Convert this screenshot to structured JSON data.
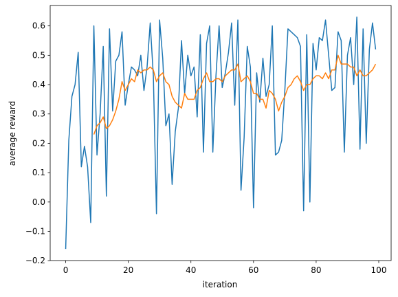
{
  "chart_data": {
    "type": "line",
    "x_label": "iteration",
    "y_label": "average reward",
    "xlim": [
      -4.95,
      103.95
    ],
    "ylim": [
      -0.1995,
      0.6695
    ],
    "xticks": [
      0,
      20,
      40,
      60,
      80,
      100
    ],
    "yticks": [
      {
        "value": -0.2,
        "label": "−0.2"
      },
      {
        "value": -0.1,
        "label": "−0.1"
      },
      {
        "value": 0.0,
        "label": "0.0"
      },
      0.1,
      0.2,
      0.3,
      0.4,
      0.5,
      0.6
    ],
    "series": [
      {
        "color": "#1f77b4",
        "x": [
          0,
          1,
          2,
          3,
          4,
          5,
          6,
          7,
          8,
          9,
          10,
          11,
          12,
          13,
          14,
          15,
          16,
          17,
          18,
          19,
          20,
          21,
          22,
          23,
          24,
          25,
          26,
          27,
          28,
          29,
          30,
          31,
          32,
          33,
          34,
          35,
          36,
          37,
          38,
          39,
          40,
          41,
          42,
          43,
          44,
          45,
          46,
          47,
          48,
          49,
          50,
          51,
          52,
          53,
          54,
          55,
          56,
          57,
          58,
          59,
          60,
          61,
          62,
          63,
          64,
          65,
          66,
          67,
          68,
          69,
          70,
          71,
          72,
          73,
          74,
          75,
          76,
          77,
          78,
          79,
          80,
          81,
          82,
          83,
          84,
          85,
          86,
          87,
          88,
          89,
          90,
          91,
          92,
          93,
          94,
          95,
          96,
          97,
          98,
          99
        ],
        "values": [
          -0.16,
          0.21,
          0.36,
          0.4,
          0.51,
          0.12,
          0.19,
          0.12,
          -0.07,
          0.6,
          0.16,
          0.3,
          0.53,
          0.02,
          0.59,
          0.31,
          0.48,
          0.5,
          0.58,
          0.33,
          0.4,
          0.46,
          0.45,
          0.43,
          0.5,
          0.38,
          0.46,
          0.61,
          0.43,
          -0.04,
          0.62,
          0.49,
          0.26,
          0.3,
          0.06,
          0.24,
          0.32,
          0.55,
          0.37,
          0.5,
          0.43,
          0.46,
          0.29,
          0.57,
          0.17,
          0.54,
          0.6,
          0.17,
          0.43,
          0.6,
          0.39,
          0.44,
          0.51,
          0.61,
          0.33,
          0.62,
          0.04,
          0.22,
          0.53,
          0.46,
          -0.02,
          0.44,
          0.34,
          0.49,
          0.36,
          0.4,
          0.6,
          0.16,
          0.17,
          0.21,
          0.38,
          0.59,
          0.58,
          0.57,
          0.56,
          0.53,
          -0.03,
          0.57,
          0.0,
          0.54,
          0.45,
          0.56,
          0.55,
          0.62,
          0.5,
          0.38,
          0.39,
          0.58,
          0.55,
          0.17,
          0.5,
          0.56,
          0.4,
          0.63,
          0.18,
          0.59,
          0.2,
          0.52,
          0.61,
          0.52
        ]
      },
      {
        "color": "#ff7f0e",
        "x": [
          9,
          10,
          11,
          12,
          13,
          14,
          15,
          16,
          17,
          18,
          19,
          20,
          21,
          22,
          23,
          24,
          25,
          26,
          27,
          28,
          29,
          30,
          31,
          32,
          33,
          34,
          35,
          36,
          37,
          38,
          39,
          40,
          41,
          42,
          43,
          44,
          45,
          46,
          47,
          48,
          49,
          50,
          51,
          52,
          53,
          54,
          55,
          56,
          57,
          58,
          59,
          60,
          61,
          62,
          63,
          64,
          65,
          66,
          67,
          68,
          69,
          70,
          71,
          72,
          73,
          74,
          75,
          76,
          77,
          78,
          79,
          80,
          81,
          82,
          83,
          84,
          85,
          86,
          87,
          88,
          89,
          90,
          91,
          92,
          93,
          94,
          95,
          96,
          97,
          98,
          99
        ],
        "values": [
          0.23,
          0.26,
          0.27,
          0.29,
          0.25,
          0.26,
          0.28,
          0.31,
          0.35,
          0.41,
          0.38,
          0.4,
          0.42,
          0.41,
          0.45,
          0.44,
          0.45,
          0.45,
          0.46,
          0.45,
          0.41,
          0.43,
          0.44,
          0.41,
          0.4,
          0.36,
          0.34,
          0.33,
          0.32,
          0.37,
          0.35,
          0.35,
          0.35,
          0.38,
          0.39,
          0.42,
          0.44,
          0.41,
          0.41,
          0.42,
          0.42,
          0.41,
          0.43,
          0.44,
          0.45,
          0.45,
          0.47,
          0.41,
          0.42,
          0.43,
          0.41,
          0.37,
          0.37,
          0.35,
          0.35,
          0.32,
          0.38,
          0.37,
          0.35,
          0.31,
          0.34,
          0.36,
          0.39,
          0.4,
          0.42,
          0.43,
          0.41,
          0.38,
          0.4,
          0.4,
          0.42,
          0.43,
          0.43,
          0.42,
          0.44,
          0.42,
          0.45,
          0.45,
          0.5,
          0.47,
          0.47,
          0.47,
          0.46,
          0.46,
          0.43,
          0.45,
          0.43,
          0.43,
          0.44,
          0.45,
          0.47
        ]
      }
    ]
  }
}
